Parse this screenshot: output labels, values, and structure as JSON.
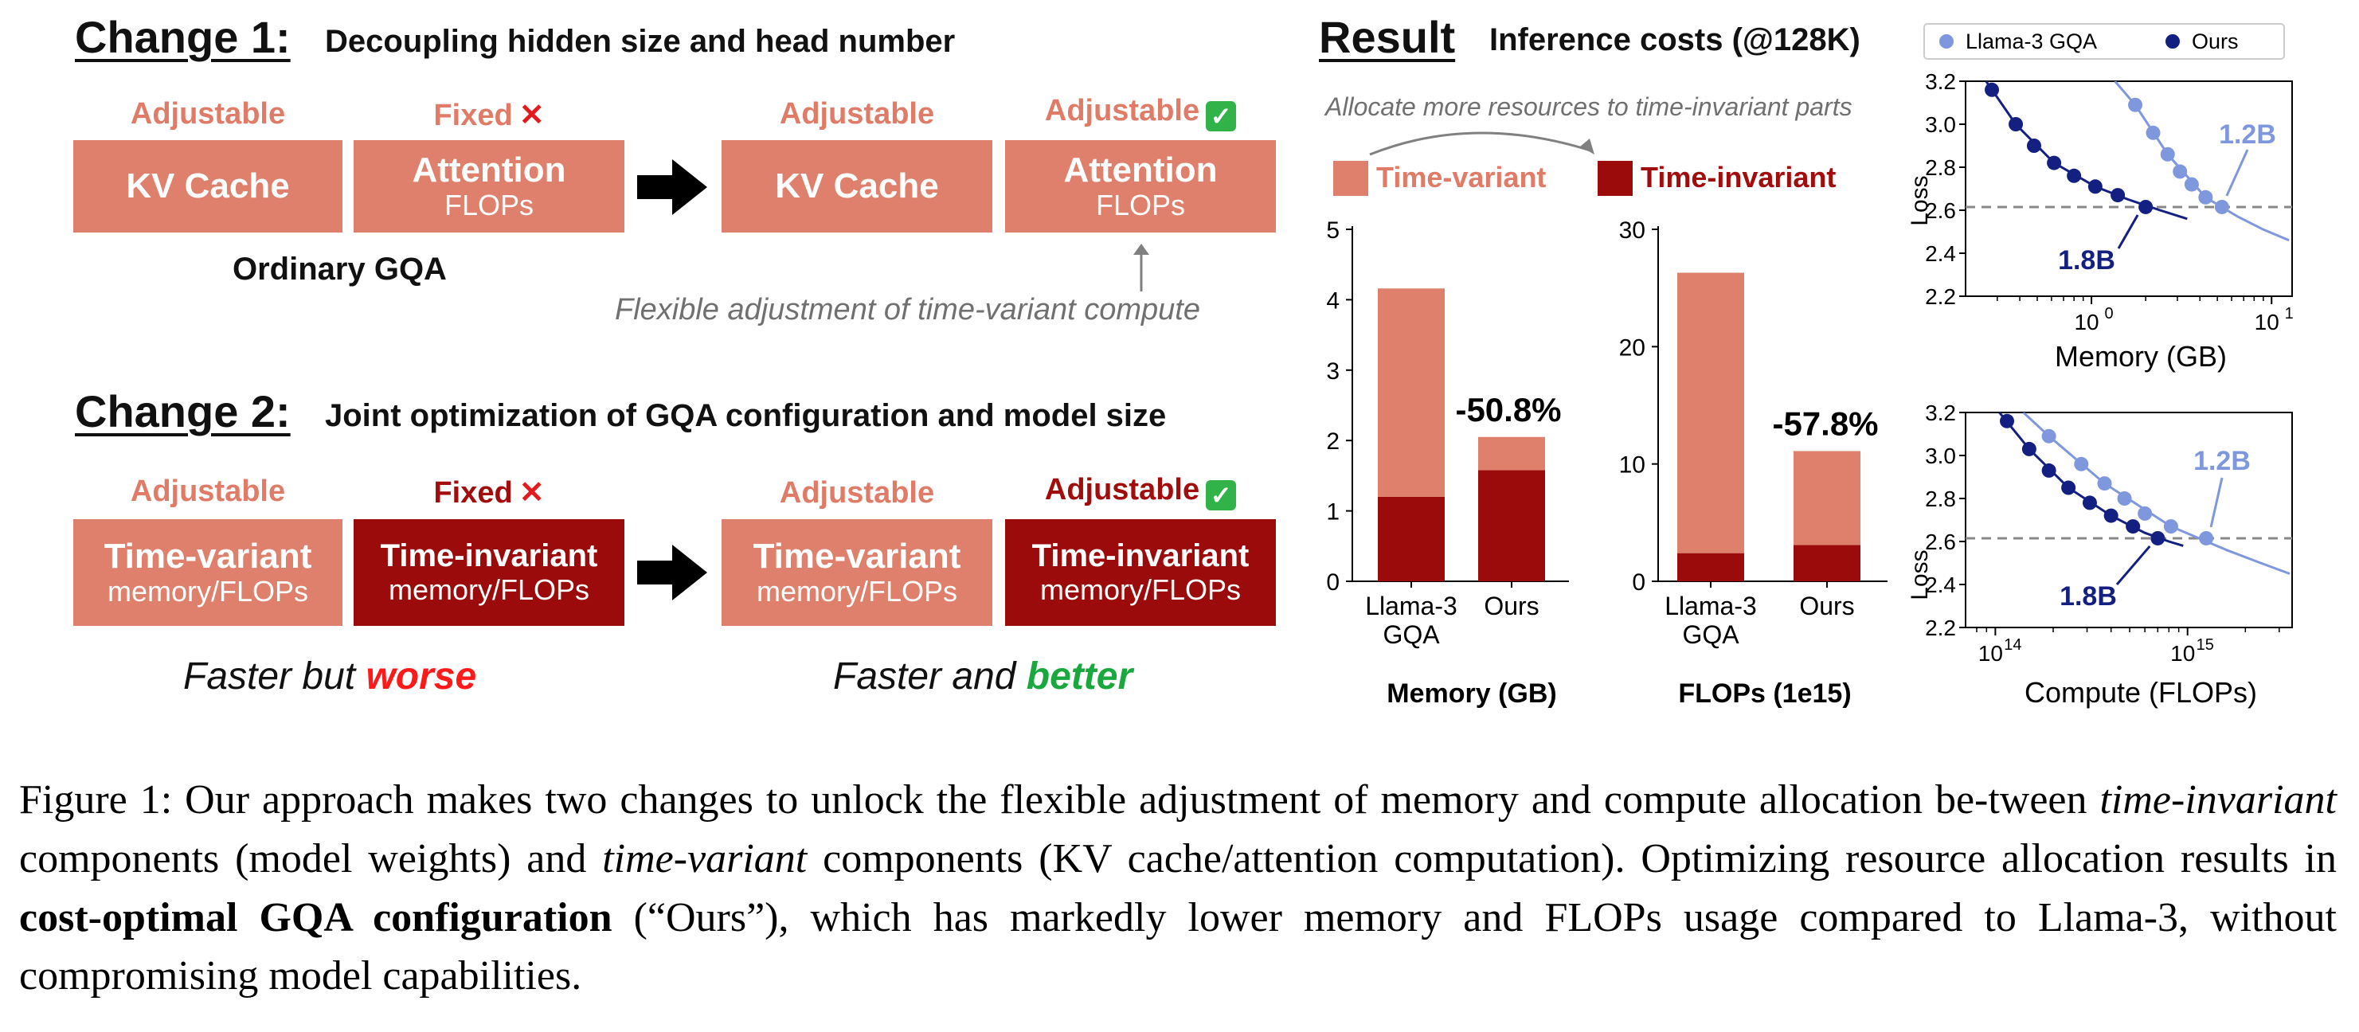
{
  "change1": {
    "title": "Change 1:",
    "desc": "Decoupling hidden size and head number",
    "before": {
      "kv": {
        "state": "Adjustable",
        "label": "KV Cache"
      },
      "attn": {
        "state": "Fixed",
        "label": "Attention",
        "sub": "FLOPs"
      },
      "caption": "Ordinary GQA"
    },
    "after": {
      "kv": {
        "state": "Adjustable",
        "label": "KV Cache"
      },
      "attn": {
        "state": "Adjustable",
        "label": "Attention",
        "sub": "FLOPs"
      }
    },
    "note": "Flexible adjustment of time-variant compute"
  },
  "change2": {
    "title": "Change 2:",
    "desc": "Joint optimization of GQA configuration and model size",
    "before": {
      "tv": {
        "state": "Adjustable",
        "label": "Time-variant",
        "sub": "memory/FLOPs"
      },
      "ti": {
        "state": "Fixed",
        "label": "Time-invariant",
        "sub": "memory/FLOPs"
      }
    },
    "after": {
      "tv": {
        "state": "Adjustable",
        "label": "Time-variant",
        "sub": "memory/FLOPs"
      },
      "ti": {
        "state": "Adjustable",
        "label": "Time-invariant",
        "sub": "memory/FLOPs"
      }
    },
    "verdict_before": {
      "prefix": "Faster but ",
      "word": "worse"
    },
    "verdict_after": {
      "prefix": "Faster and ",
      "word": "better"
    }
  },
  "result": {
    "title": "Result",
    "subtitle": "Inference costs (@128K)",
    "allocate_note": "Allocate more resources to time-invariant parts",
    "legend": {
      "tv": "Time-variant",
      "ti": "Time-invariant"
    }
  },
  "colors": {
    "time_variant": "#de806c",
    "time_invariant": "#9b0b0b",
    "llama": "#7f97dc",
    "ours": "#141f82",
    "check": "#32b34a",
    "cross": "#e21c1c"
  },
  "chart_data": [
    {
      "type": "bar",
      "stacked": true,
      "xlabel": "Memory (GB)",
      "categories": [
        "Llama-3\nGQA",
        "Ours"
      ],
      "series": [
        {
          "name": "Time-invariant",
          "values": [
            1.2,
            1.58
          ]
        },
        {
          "name": "Time-variant",
          "values": [
            2.96,
            0.47
          ]
        }
      ],
      "ylim": [
        0,
        5
      ],
      "yticks": [
        0,
        1,
        2,
        3,
        4,
        5
      ],
      "annotation": "-50.8%"
    },
    {
      "type": "bar",
      "stacked": true,
      "xlabel": "FLOPs (1e15)",
      "categories": [
        "Llama-3\nGQA",
        "Ours"
      ],
      "series": [
        {
          "name": "Time-invariant",
          "values": [
            2.4,
            3.1
          ]
        },
        {
          "name": "Time-variant",
          "values": [
            23.9,
            8.0
          ]
        }
      ],
      "ylim": [
        0,
        30
      ],
      "yticks": [
        0,
        10,
        20,
        30
      ],
      "annotation": "-57.8%"
    },
    {
      "type": "line",
      "xscale": "log",
      "xlabel": "Memory (GB)",
      "ylabel": "Loss",
      "xlim": [
        0.2,
        13
      ],
      "ylim": [
        2.2,
        3.2
      ],
      "yticks": [
        2.2,
        2.4,
        2.6,
        2.8,
        3.0,
        3.2
      ],
      "xticks": [
        {
          "v": 1,
          "label": "10",
          "exp": "0"
        },
        {
          "v": 10,
          "label": "10",
          "exp": "1"
        }
      ],
      "hline": 2.615,
      "legend": [
        "Llama-3 GQA",
        "Ours"
      ],
      "series": [
        {
          "name": "Llama-3 GQA",
          "points": [
            [
              1.75,
              3.09
            ],
            [
              2.2,
              2.96
            ],
            [
              2.65,
              2.86
            ],
            [
              3.1,
              2.78
            ],
            [
              3.6,
              2.72
            ],
            [
              4.3,
              2.66
            ],
            [
              5.3,
              2.615
            ]
          ],
          "curve": [
            [
              1.35,
              3.2
            ],
            [
              1.75,
              3.09
            ],
            [
              2.65,
              2.86
            ],
            [
              4.3,
              2.66
            ],
            [
              6.5,
              2.57
            ],
            [
              9,
              2.51
            ],
            [
              12.5,
              2.46
            ]
          ]
        },
        {
          "name": "Ours",
          "points": [
            [
              0.28,
              3.16
            ],
            [
              0.38,
              3.0
            ],
            [
              0.48,
              2.9
            ],
            [
              0.62,
              2.82
            ],
            [
              0.8,
              2.76
            ],
            [
              1.05,
              2.71
            ],
            [
              1.4,
              2.67
            ],
            [
              2.0,
              2.615
            ]
          ],
          "curve": [
            [
              0.26,
              3.2
            ],
            [
              0.38,
              3.0
            ],
            [
              0.62,
              2.82
            ],
            [
              1.05,
              2.71
            ],
            [
              1.6,
              2.65
            ],
            [
              2.4,
              2.6
            ],
            [
              3.4,
              2.56
            ]
          ]
        }
      ],
      "annotations": [
        "1.2B",
        "1.8B"
      ]
    },
    {
      "type": "line",
      "xscale": "log",
      "xlabel": "Compute (FLOPs)",
      "ylabel": "Loss",
      "xlim": [
        70000000000000.0,
        3500000000000000.0
      ],
      "ylim": [
        2.2,
        3.2
      ],
      "yticks": [
        2.2,
        2.4,
        2.6,
        2.8,
        3.0,
        3.2
      ],
      "xticks": [
        {
          "v": 100000000000000.0,
          "label": "10",
          "exp": "14"
        },
        {
          "v": 1000000000000000.0,
          "label": "10",
          "exp": "15"
        }
      ],
      "hline": 2.615,
      "series": [
        {
          "name": "Llama-3 GQA",
          "points": [
            [
              190000000000000.0,
              3.09
            ],
            [
              280000000000000.0,
              2.96
            ],
            [
              370000000000000.0,
              2.87
            ],
            [
              470000000000000.0,
              2.8
            ],
            [
              600000000000000.0,
              2.73
            ],
            [
              820000000000000.0,
              2.67
            ],
            [
              1250000000000000.0,
              2.615
            ]
          ],
          "curve": [
            [
              140000000000000.0,
              3.2
            ],
            [
              190000000000000.0,
              3.09
            ],
            [
              370000000000000.0,
              2.87
            ],
            [
              820000000000000.0,
              2.67
            ],
            [
              1600000000000000.0,
              2.56
            ],
            [
              2400000000000000.0,
              2.5
            ],
            [
              3400000000000000.0,
              2.45
            ]
          ]
        },
        {
          "name": "Ours",
          "points": [
            [
              115000000000000.0,
              3.16
            ],
            [
              150000000000000.0,
              3.03
            ],
            [
              190000000000000.0,
              2.93
            ],
            [
              240000000000000.0,
              2.85
            ],
            [
              310000000000000.0,
              2.78
            ],
            [
              400000000000000.0,
              2.72
            ],
            [
              520000000000000.0,
              2.67
            ],
            [
              700000000000000.0,
              2.615
            ]
          ],
          "curve": [
            [
              105000000000000.0,
              3.2
            ],
            [
              150000000000000.0,
              3.03
            ],
            [
              240000000000000.0,
              2.85
            ],
            [
              400000000000000.0,
              2.72
            ],
            [
              600000000000000.0,
              2.64
            ],
            [
              800000000000000.0,
              2.6
            ],
            [
              950000000000000.0,
              2.58
            ]
          ]
        }
      ],
      "annotations": [
        "1.2B",
        "1.8B"
      ]
    }
  ],
  "caption": {
    "p1": "Figure 1: Our approach makes two changes to unlock the flexible adjustment of memory and compute allocation be-tween ",
    "em1": "time-invariant",
    "p2": " components (model weights) and ",
    "em2": "time-variant",
    "p3": " components (KV cache/attention computation). Optimizing resource allocation results in ",
    "strong": "cost-optimal GQA configuration",
    "p4": " (“Ours”), which has markedly lower memory and FLOPs usage compared to Llama-3, without compromising model capabilities."
  }
}
